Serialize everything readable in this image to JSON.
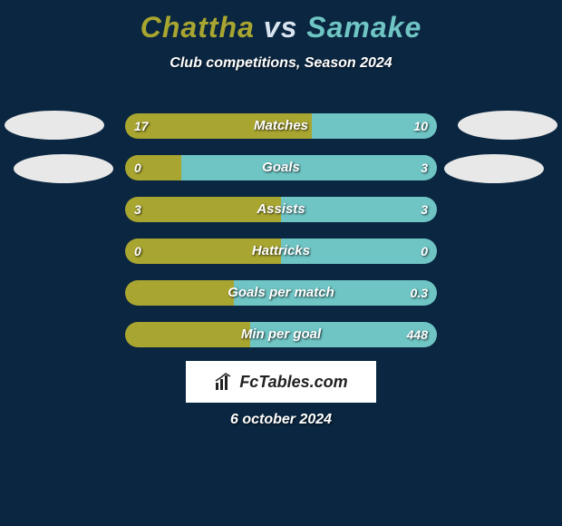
{
  "title": {
    "player1": "Chattha",
    "vs": "vs",
    "player2": "Samake"
  },
  "subtitle": "Club competitions, Season 2024",
  "colors": {
    "player1": "#a8a530",
    "player2": "#6fc4c4",
    "title_vs": "#d8e4ef",
    "background": "#0a2640"
  },
  "stats": [
    {
      "label": "Matches",
      "left_val": "17",
      "right_val": "10",
      "left_pct": 60,
      "right_pct": 40
    },
    {
      "label": "Goals",
      "left_val": "0",
      "right_val": "3",
      "left_pct": 18,
      "right_pct": 82
    },
    {
      "label": "Assists",
      "left_val": "3",
      "right_val": "3",
      "left_pct": 50,
      "right_pct": 50
    },
    {
      "label": "Hattricks",
      "left_val": "0",
      "right_val": "0",
      "left_pct": 50,
      "right_pct": 50
    },
    {
      "label": "Goals per match",
      "left_val": "",
      "right_val": "0.3",
      "left_pct": 35,
      "right_pct": 65
    },
    {
      "label": "Min per goal",
      "left_val": "",
      "right_val": "448",
      "left_pct": 40,
      "right_pct": 60
    }
  ],
  "brand": "FcTables.com",
  "date": "6 october 2024"
}
